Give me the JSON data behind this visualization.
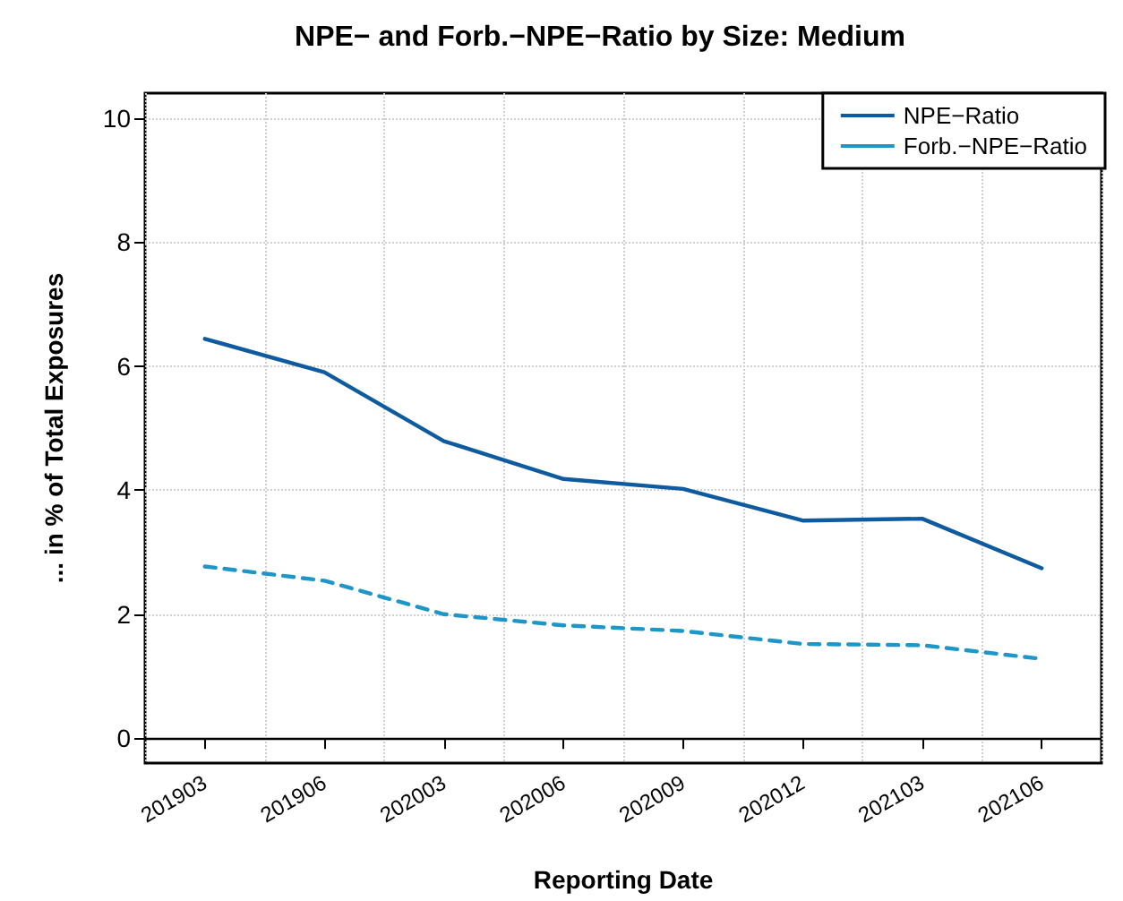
{
  "chart_data": {
    "type": "line",
    "title": "NPE− and Forb.−NPE−Ratio by Size: Medium",
    "xlabel": "Reporting Date",
    "ylabel": "... in % of Total Exposures",
    "categories": [
      "201903",
      "201906",
      "202003",
      "202006",
      "202009",
      "202012",
      "202103",
      "202106"
    ],
    "series": [
      {
        "name": "NPE−Ratio",
        "color": "#0f5ba0",
        "line_style": "solid",
        "values": [
          6.44,
          5.9,
          4.79,
          4.18,
          4.02,
          3.51,
          3.54,
          2.74
        ]
      },
      {
        "name": "Forb.−NPE−Ratio",
        "color": "#1e96c8",
        "line_style": "dashed",
        "values": [
          2.77,
          2.54,
          2.0,
          1.82,
          1.73,
          1.52,
          1.5,
          1.28
        ]
      }
    ],
    "ylim": [
      -0.4,
      10.4
    ],
    "yticks": [
      0,
      2,
      4,
      6,
      8,
      10
    ],
    "ref_lines": [
      {
        "axis": "y",
        "value": 0,
        "label": null,
        "color": "#000000"
      }
    ],
    "grid": true,
    "legend": "top right",
    "marker": "none"
  }
}
